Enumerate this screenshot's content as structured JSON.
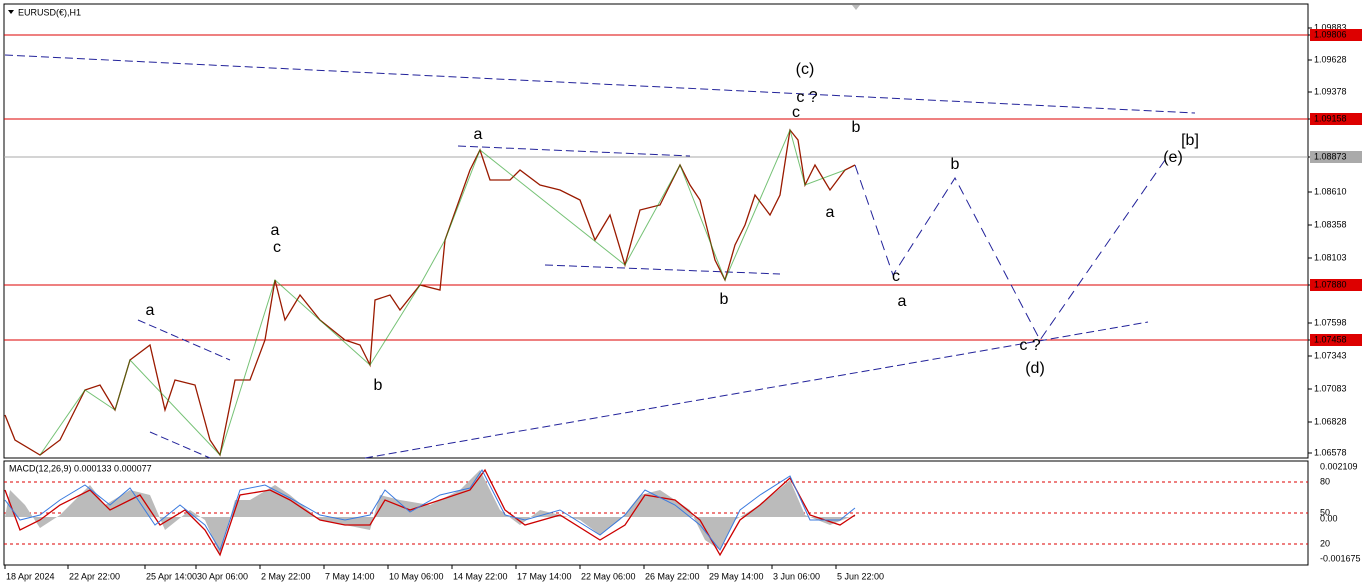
{
  "window": {
    "symbol": "EURUSD(€),H1"
  },
  "price_axis": [
    "1.09883",
    "1.09806",
    "1.09628",
    "1.09378",
    "1.09158",
    "1.08873",
    "1.08610",
    "1.08358",
    "1.08103",
    "1.07880",
    "1.07598",
    "1.07458",
    "1.07343",
    "1.07083",
    "1.06828",
    "1.06578"
  ],
  "time_axis": [
    "18 Apr 2024",
    "22 Apr 22:00",
    "25 Apr 14:00",
    "30 Apr 06:00",
    "2 May 22:00",
    "7 May 14:00",
    "10 May 06:00",
    "14 May 22:00",
    "17 May 14:00",
    "22 May 06:00",
    "26 May 22:00",
    "29 May 14:00",
    "3 Jun 06:00",
    "5 Jun 22:00"
  ],
  "macd": {
    "label": "MACD(12,26,9) 0.000133 0.000077",
    "axis": [
      "0.002109",
      "80",
      "50",
      "0.00",
      "20",
      "-0.001675"
    ]
  },
  "wave_labels": [
    "(c)",
    "c ?",
    "c",
    "b",
    "a",
    "[b]",
    "(e)",
    "b",
    "a",
    "a",
    "c",
    "c",
    "a",
    "b",
    "a",
    "c ?",
    "(d)",
    "b"
  ]
}
